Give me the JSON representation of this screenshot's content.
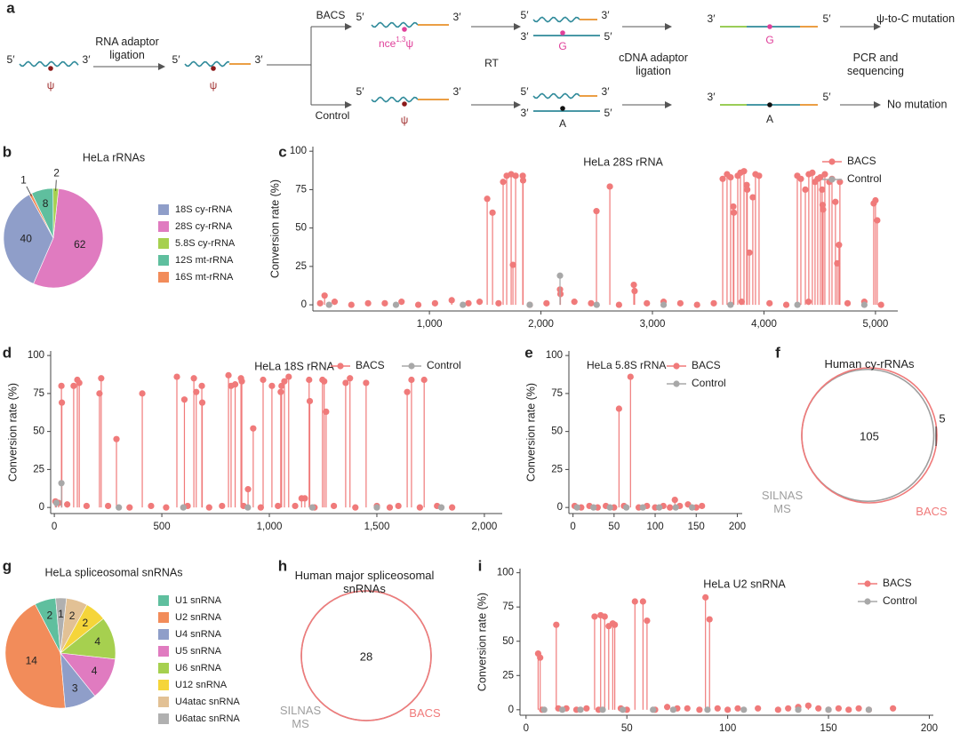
{
  "diagram": {
    "panel": "a",
    "five_prime": "5′",
    "three_prime": "3′",
    "psi": "ψ",
    "modified_base": {
      "prefix": "nce",
      "superscript": "1,3",
      "base": "ψ"
    },
    "step_adaptor": "RNA adaptor ligation",
    "branch_bacs": "BACS",
    "branch_control": "Control",
    "step_rt": "RT",
    "step_cdna": "cDNA adaptor ligation",
    "step_pcr": "PCR and sequencing",
    "base_g": "G",
    "base_a": "A",
    "result_bacs": "ψ-to-C mutation",
    "result_control": "No mutation"
  },
  "chart_data": [
    {
      "type": "pie",
      "panel": "b",
      "title": "HeLa rRNAs",
      "categories": [
        "18S cy-rRNA",
        "28S cy-rRNA",
        "5.8S cy-rRNA",
        "12S mt-rRNA",
        "16S mt-rRNA"
      ],
      "values": [
        40,
        62,
        2,
        8,
        1
      ],
      "colors": [
        "#8f9ec9",
        "#e07bc0",
        "#a6d04f",
        "#5fbf9e",
        "#f28c5a"
      ]
    },
    {
      "type": "lollipop",
      "panel": "c",
      "title": "HeLa 28S rRNA",
      "ylabel": "Conversion rate (%)",
      "xlim": [
        -45,
        5200
      ],
      "xticks": [
        {
          "value": 1000,
          "label": "1,000"
        },
        {
          "value": 2000,
          "label": "2,000"
        },
        {
          "value": 3000,
          "label": "3,000"
        },
        {
          "value": 4000,
          "label": "4,000"
        },
        {
          "value": 5000,
          "label": "5,000"
        }
      ],
      "ylim": [
        -4,
        103
      ],
      "yticks": [
        0,
        25,
        50,
        75,
        100
      ],
      "legend": "upper right",
      "series": [
        {
          "name": "BACS",
          "color": "#f07a7a",
          "x": [
            20,
            60,
            150,
            300,
            450,
            600,
            750,
            900,
            1050,
            1200,
            1350,
            1450,
            1518,
            1566,
            1620,
            1661,
            1693,
            1733,
            1749,
            1773,
            1837,
            1840,
            1900,
            2050,
            2171,
            2175,
            2300,
            2450,
            2498,
            2618,
            2700,
            2833,
            2840,
            2950,
            3100,
            3250,
            3400,
            3550,
            3630,
            3669,
            3701,
            3725,
            3730,
            3765,
            3789,
            3800,
            3821,
            3845,
            3850,
            3869,
            3900,
            3924,
            3956,
            4050,
            4200,
            4299,
            4331,
            4371,
            4400,
            4402,
            4434,
            4458,
            4482,
            4506,
            4522,
            4526,
            4530,
            4546,
            4586,
            4610,
            4641,
            4657,
            4673,
            4681,
            4750,
            4900,
            4984,
            5000,
            5016,
            5050
          ],
          "values": [
            1,
            6,
            2,
            0,
            1,
            1,
            2,
            0,
            1,
            3,
            1,
            2,
            69,
            60,
            1,
            80,
            84,
            85,
            26,
            84,
            84,
            81,
            0,
            1,
            10,
            7,
            2,
            1,
            61,
            77,
            0,
            13,
            9,
            1,
            2,
            1,
            0,
            1,
            82,
            85,
            83,
            64,
            60,
            84,
            86,
            2,
            87,
            78,
            75,
            34,
            70,
            85,
            84,
            1,
            0,
            84,
            82,
            75,
            2,
            85,
            86,
            80,
            82,
            83,
            75,
            65,
            62,
            85,
            80,
            82,
            67,
            27,
            39,
            80,
            1,
            2,
            66,
            68,
            55,
            0
          ]
        },
        {
          "name": "Control",
          "color": "#a8a8a8",
          "x": [
            100,
            700,
            1300,
            1900,
            2171,
            2500,
            3100,
            3700,
            4300,
            4900
          ],
          "values": [
            0,
            0,
            0,
            0,
            19,
            0,
            0,
            0,
            0,
            0
          ]
        }
      ]
    },
    {
      "type": "lollipop",
      "panel": "d",
      "title": "HeLa 18S rRNA",
      "ylabel": "Conversion rate (%)",
      "xlim": [
        -17,
        2083
      ],
      "xticks": [
        0,
        500,
        {
          "value": 1000,
          "label": "1,000"
        },
        {
          "value": 1500,
          "label": "1,500"
        },
        {
          "value": 2000,
          "label": "2,000"
        }
      ],
      "ylim": [
        -4,
        103
      ],
      "yticks": [
        0,
        25,
        50,
        75,
        100
      ],
      "legend": "upper center",
      "series": [
        {
          "name": "BACS",
          "color": "#f07a7a",
          "x": [
            5,
            20,
            33,
            35,
            60,
            90,
            107,
            116,
            150,
            210,
            218,
            250,
            289,
            350,
            409,
            450,
            520,
            570,
            605,
            620,
            649,
            660,
            686,
            688,
            720,
            780,
            810,
            822,
            841,
            868,
            872,
            880,
            901,
            925,
            960,
            971,
            1012,
            1040,
            1053,
            1057,
            1070,
            1090,
            1120,
            1150,
            1165,
            1185,
            1188,
            1210,
            1247,
            1255,
            1264,
            1300,
            1355,
            1375,
            1400,
            1450,
            1500,
            1560,
            1600,
            1641,
            1661,
            1700,
            1720,
            1780,
            1850
          ],
          "values": [
            4,
            3,
            80,
            69,
            2,
            80,
            84,
            82,
            1,
            75,
            85,
            1,
            45,
            0,
            75,
            1,
            0,
            86,
            71,
            1,
            85,
            76,
            80,
            69,
            0,
            1,
            87,
            80,
            81,
            85,
            83,
            1,
            12,
            52,
            0,
            84,
            80,
            1,
            76,
            80,
            83,
            86,
            1,
            6,
            6,
            84,
            70,
            0,
            84,
            83,
            63,
            1,
            82,
            85,
            0,
            82,
            1,
            0,
            1,
            76,
            84,
            0,
            84,
            1,
            0
          ]
        },
        {
          "name": "Control",
          "color": "#a8a8a8",
          "x": [
            10,
            33,
            300,
            600,
            900,
            1200,
            1500,
            1800
          ],
          "values": [
            3,
            16,
            0,
            0,
            0,
            0,
            0,
            0
          ]
        }
      ]
    },
    {
      "type": "lollipop",
      "panel": "e",
      "title": "HeLa 5.8S rRNA",
      "title_loc": "left",
      "ylabel": "Conversion rate (%)",
      "xlim": [
        -5,
        206
      ],
      "xticks": [
        0,
        50,
        100,
        150,
        200
      ],
      "ylim": [
        -4,
        103
      ],
      "yticks": [
        0,
        25,
        50,
        75,
        100
      ],
      "legend": "upper right",
      "series": [
        {
          "name": "BACS",
          "color": "#f07a7a",
          "x": [
            2,
            10,
            20,
            30,
            40,
            50,
            56,
            62,
            70,
            80,
            90,
            100,
            110,
            118,
            124,
            130,
            140,
            150,
            157
          ],
          "values": [
            1,
            0,
            1,
            0,
            1,
            0,
            65,
            1,
            86,
            0,
            1,
            0,
            1,
            0,
            5,
            1,
            2,
            0,
            1
          ]
        },
        {
          "name": "Control",
          "color": "#a8a8a8",
          "x": [
            5,
            25,
            45,
            65,
            85,
            105,
            125,
            145
          ],
          "values": [
            0,
            0,
            0,
            0,
            0,
            0,
            0,
            0
          ]
        }
      ]
    },
    {
      "type": "venn",
      "panel": "f",
      "title": "Human cy-rRNAs",
      "sets": [
        {
          "name": "SILNAS MS",
          "color": "#9e9e9e"
        },
        {
          "name": "BACS",
          "color": "#f07a7a",
          "unique": 5
        }
      ],
      "intersection": 105
    },
    {
      "type": "pie",
      "panel": "g",
      "title": "HeLa spliceosomal snRNAs",
      "categories": [
        "U1 snRNA",
        "U2 snRNA",
        "U4 snRNA",
        "U5 snRNA",
        "U6 snRNA",
        "U12 snRNA",
        "U4atac snRNA",
        "U6atac snRNA"
      ],
      "values": [
        2,
        14,
        3,
        4,
        4,
        2,
        2,
        1
      ],
      "colors": [
        "#5fbf9e",
        "#f28c5a",
        "#8f9ec9",
        "#e07bc0",
        "#a6d04f",
        "#f5d53a",
        "#e2c195",
        "#b0b0b0"
      ]
    },
    {
      "type": "venn",
      "panel": "h",
      "title": "Human major spliceosomal snRNAs",
      "sets": [
        {
          "name": "SILNAS MS",
          "color": "#9e9e9e"
        },
        {
          "name": "BACS",
          "color": "#f07a7a"
        }
      ],
      "intersection": 28
    },
    {
      "type": "lollipop",
      "panel": "i",
      "title": "HeLa U2 snRNA",
      "ylabel": "Conversion rate (%)",
      "xlim": [
        -3,
        202
      ],
      "xticks": [
        0,
        50,
        100,
        150,
        200
      ],
      "ylim": [
        -4,
        103
      ],
      "yticks": [
        0,
        25,
        50,
        75,
        100
      ],
      "legend": "upper right",
      "series": [
        {
          "name": "BACS",
          "color": "#f07a7a",
          "x": [
            6,
            7,
            8,
            15,
            16,
            20,
            25,
            30,
            34,
            36,
            37,
            39,
            41,
            43,
            44,
            47,
            50,
            54,
            58,
            60,
            64,
            70,
            75,
            80,
            86,
            89,
            91,
            95,
            100,
            105,
            115,
            125,
            130,
            135,
            140,
            145,
            150,
            155,
            160,
            165,
            170,
            182
          ],
          "values": [
            41,
            38,
            0,
            62,
            1,
            1,
            0,
            1,
            68,
            0,
            69,
            68,
            61,
            63,
            62,
            1,
            0,
            79,
            79,
            65,
            0,
            2,
            1,
            1,
            0,
            82,
            66,
            1,
            0,
            1,
            1,
            0,
            1,
            2,
            3,
            1,
            0,
            1,
            0,
            1,
            0,
            1
          ]
        },
        {
          "name": "Control",
          "color": "#a8a8a8",
          "x": [
            9,
            18,
            27,
            38,
            48,
            63,
            73,
            90,
            108,
            135,
            150,
            170
          ],
          "values": [
            0,
            0,
            0,
            0,
            0,
            0,
            0,
            0,
            0,
            0,
            0,
            0
          ]
        }
      ]
    }
  ]
}
